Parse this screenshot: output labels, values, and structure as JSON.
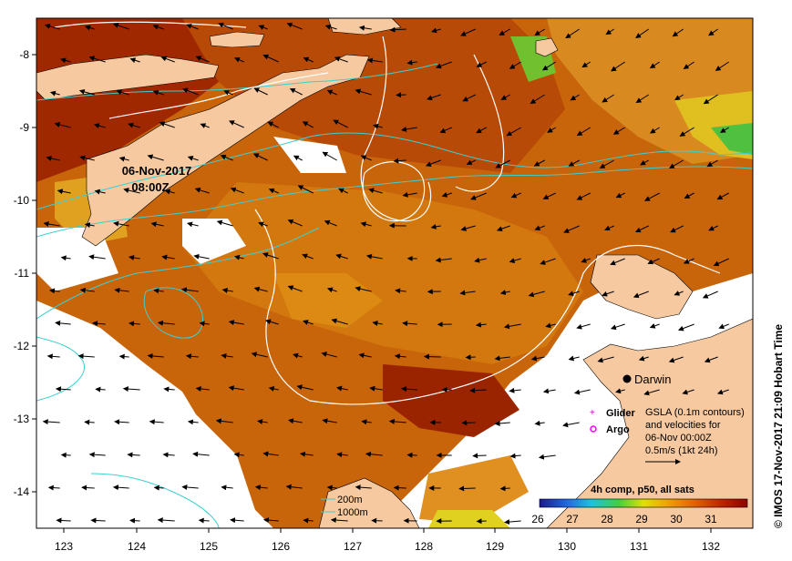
{
  "map": {
    "timestamp_date": "06-Nov-2017",
    "timestamp_time": "08:00Z",
    "credit": "© IMOS 17-Nov-2017 21:09 Hobart Time",
    "x_ticks": [
      "123",
      "124",
      "125",
      "126",
      "127",
      "128",
      "129",
      "130",
      "131",
      "132"
    ],
    "y_ticks": [
      "-8",
      "-9",
      "-10",
      "-11",
      "-12",
      "-13",
      "-14"
    ],
    "place_label": "Darwin",
    "legend": {
      "glider_label": "Glider",
      "argo_label": "Argo",
      "gsla_line1": "GSLA (0.1m contours)",
      "gsla_line2": "and velocities for",
      "gsla_line3": "06-Nov 00:00Z",
      "scale_text": "0.5m/s (1kt 24h)",
      "contour_200": "200m",
      "contour_1000": "1000m"
    },
    "colorbar": {
      "title": "4h comp, p50, all sats",
      "ticks": [
        "26",
        "27",
        "28",
        "29",
        "30",
        "31"
      ],
      "colors": [
        "#1a1a8c",
        "#2060e0",
        "#20c0e0",
        "#40d040",
        "#e0e000",
        "#f0a000",
        "#e06000",
        "#c02000",
        "#900000"
      ]
    },
    "colors": {
      "land": "#f6c9a0",
      "sst_warm": "#c8640a",
      "sst_hot": "#a02800",
      "contour_shelf": "#3cd0d0",
      "contour_gsla": "#ffffff"
    }
  }
}
